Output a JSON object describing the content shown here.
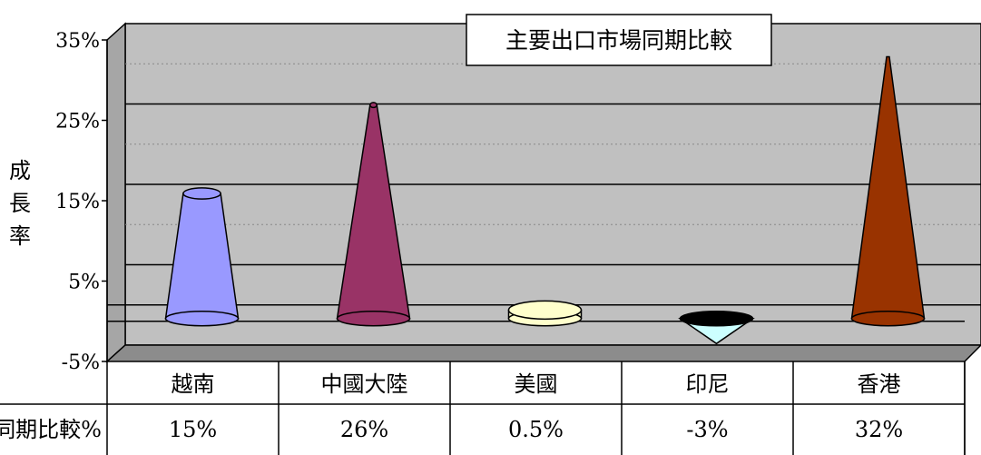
{
  "chart_data": {
    "type": "bar",
    "bar_shape": "cone",
    "title": "主要出口市場同期比較",
    "ylabel": "成長率",
    "ylim": [
      -5,
      35
    ],
    "yticks": [
      "-5%",
      "5%",
      "15%",
      "25%",
      "35%"
    ],
    "grid": true,
    "categories": [
      "越南",
      "中國大陸",
      "美國",
      "印尼",
      "香港"
    ],
    "series": [
      {
        "name": "同期比較%",
        "values": [
          15,
          26,
          0.5,
          -3,
          32
        ],
        "value_labels": [
          "15%",
          "26%",
          "0.5%",
          "-3%",
          "32%"
        ]
      }
    ],
    "bar_colors": [
      "#9999ff",
      "#993366",
      "#ffffcc",
      "#ccffff",
      "#993300"
    ]
  }
}
